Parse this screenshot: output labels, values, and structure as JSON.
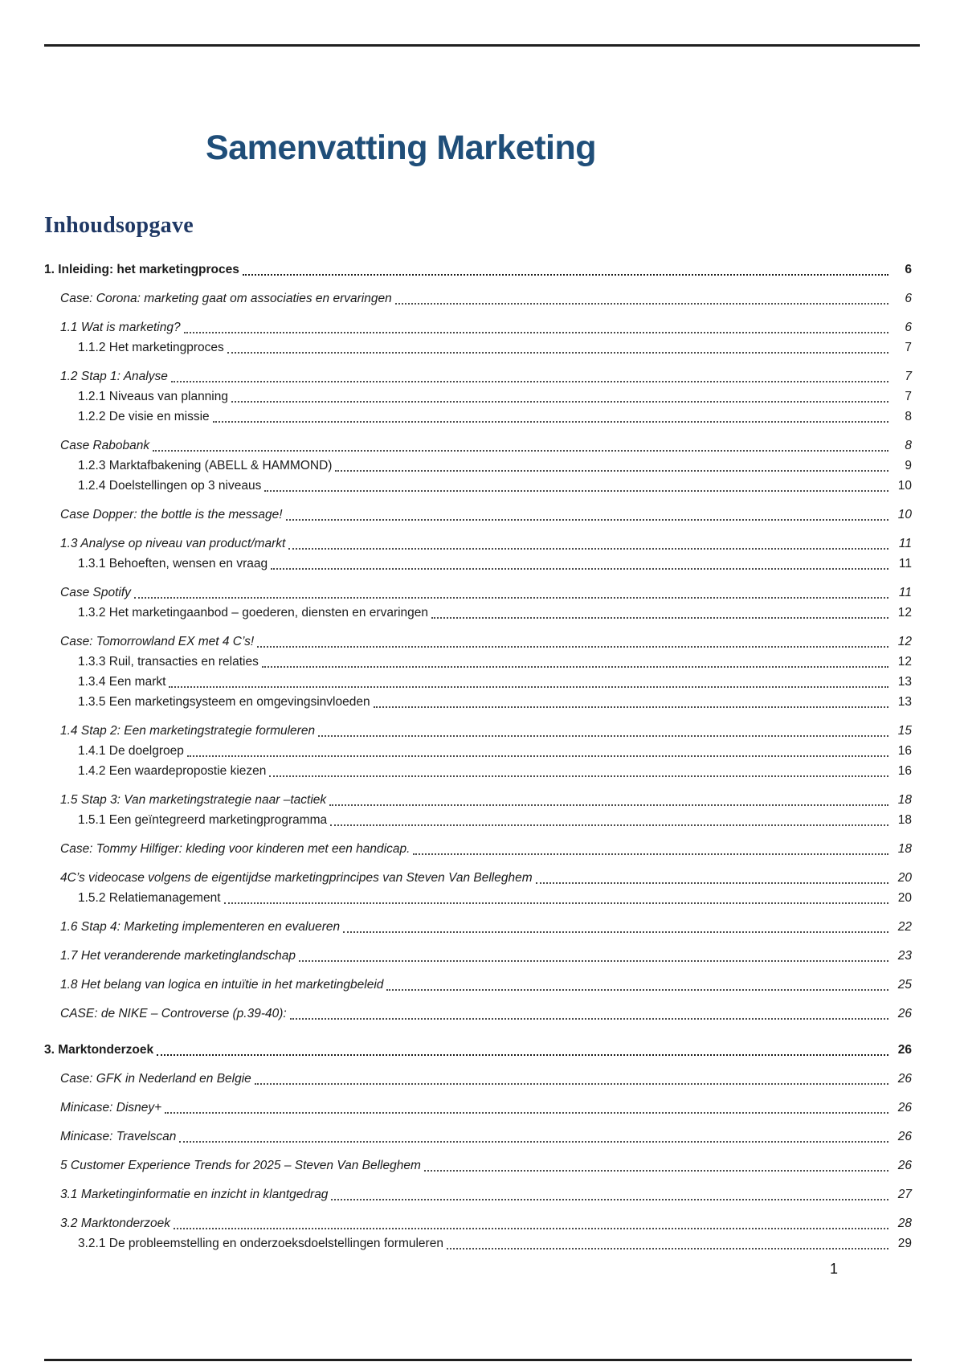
{
  "page": {
    "title": "Samenvatting Marketing",
    "toc_heading": "Inhoudsopgave",
    "footer_page_number": "1"
  },
  "colors": {
    "title_blue": "#1f4e79",
    "heading_navy": "#1f3864",
    "body_text": "#1b1b1b",
    "rule_black": "#1f1f1f"
  },
  "toc": {
    "entries": [
      {
        "label": "1. Inleiding: het marketingproces",
        "page": "6",
        "level": "chapter"
      },
      {
        "label": "Case: Corona: marketing gaat om associaties en ervaringen",
        "page": "6",
        "level": "section"
      },
      {
        "label": "1.1 Wat is marketing?",
        "page": "6",
        "level": "section"
      },
      {
        "label": "1.1.2 Het marketingproces",
        "page": "7",
        "level": "subsection"
      },
      {
        "label": "1.2 Stap 1: Analyse",
        "page": "7",
        "level": "section"
      },
      {
        "label": "1.2.1 Niveaus van planning",
        "page": "7",
        "level": "subsection"
      },
      {
        "label": "1.2.2 De visie en missie",
        "page": "8",
        "level": "subsection"
      },
      {
        "label": "Case Rabobank",
        "page": "8",
        "level": "section"
      },
      {
        "label": "1.2.3 Marktafbakening (ABELL & HAMMOND)",
        "page": "9",
        "level": "subsection"
      },
      {
        "label": "1.2.4 Doelstellingen op 3 niveaus",
        "page": "10",
        "level": "subsection"
      },
      {
        "label": "Case Dopper: the bottle is the message!",
        "page": "10",
        "level": "section"
      },
      {
        "label": "1.3 Analyse op niveau van product/markt",
        "page": "11",
        "level": "section"
      },
      {
        "label": "1.3.1 Behoeften, wensen en vraag",
        "page": "11",
        "level": "subsection"
      },
      {
        "label": "Case Spotify",
        "page": "11",
        "level": "section"
      },
      {
        "label": "1.3.2 Het marketingaanbod – goederen, diensten en ervaringen",
        "page": "12",
        "level": "subsection"
      },
      {
        "label": "Case: Tomorrowland EX met 4 C’s!",
        "page": "12",
        "level": "section"
      },
      {
        "label": "1.3.3 Ruil, transacties en relaties",
        "page": "12",
        "level": "subsection"
      },
      {
        "label": "1.3.4 Een markt",
        "page": "13",
        "level": "subsection"
      },
      {
        "label": "1.3.5 Een marketingsysteem en omgevingsinvloeden",
        "page": "13",
        "level": "subsection"
      },
      {
        "label": "1.4 Stap 2: Een marketingstrategie formuleren",
        "page": "15",
        "level": "section"
      },
      {
        "label": "1.4.1 De doelgroep",
        "page": "16",
        "level": "subsection"
      },
      {
        "label": "1.4.2 Een waardepropostie kiezen",
        "page": "16",
        "level": "subsection"
      },
      {
        "label": "1.5 Stap 3: Van marketingstrategie naar –tactiek",
        "page": "18",
        "level": "section"
      },
      {
        "label": "1.5.1 Een geïntegreerd marketingprogramma",
        "page": "18",
        "level": "subsection"
      },
      {
        "label": "Case: Tommy Hilfiger: kleding voor kinderen met een handicap.",
        "page": "18",
        "level": "section"
      },
      {
        "label": "4C’s videocase volgens de eigentijdse marketingprincipes van Steven Van Belleghem",
        "page": "20",
        "level": "section"
      },
      {
        "label": "1.5.2 Relatiemanagement",
        "page": "20",
        "level": "subsection"
      },
      {
        "label": "1.6 Stap 4: Marketing implementeren en evalueren",
        "page": "22",
        "level": "section"
      },
      {
        "label": "1.7 Het veranderende marketinglandschap",
        "page": "23",
        "level": "section"
      },
      {
        "label": "1.8 Het belang van logica en intuïtie in het marketingbeleid",
        "page": "25",
        "level": "section"
      },
      {
        "label": "CASE: de NIKE – Controverse (p.39-40):",
        "page": "26",
        "level": "section"
      },
      {
        "label": "3. Marktonderzoek",
        "page": "26",
        "level": "chapter"
      },
      {
        "label": "Case: GFK in Nederland en Belgie",
        "page": "26",
        "level": "section"
      },
      {
        "label": "Minicase: Disney+",
        "page": "26",
        "level": "section"
      },
      {
        "label": "Minicase: Travelscan",
        "page": "26",
        "level": "section"
      },
      {
        "label": "5 Customer Experience Trends for 2025 – Steven Van Belleghem",
        "page": "26",
        "level": "section"
      },
      {
        "label": "3.1 Marketinginformatie en inzicht in klantgedrag",
        "page": "27",
        "level": "section"
      },
      {
        "label": "3.2 Marktonderzoek",
        "page": "28",
        "level": "section"
      },
      {
        "label": "3.2.1 De probleemstelling en onderzoeksdoelstellingen formuleren",
        "page": "29",
        "level": "subsection"
      }
    ]
  }
}
